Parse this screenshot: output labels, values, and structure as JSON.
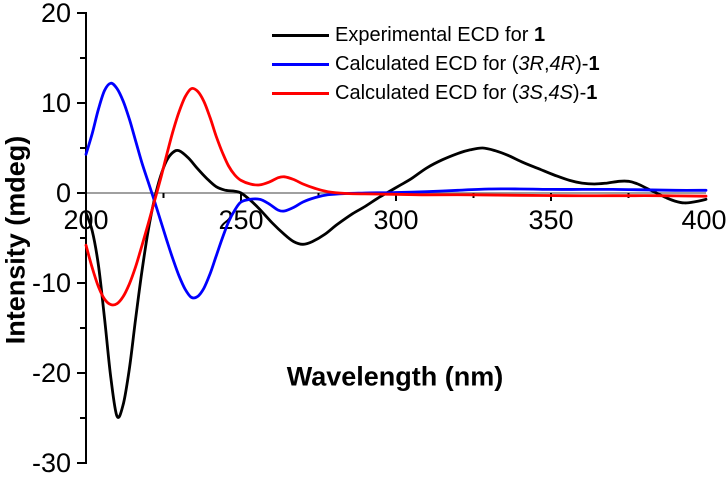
{
  "chart_data": {
    "type": "line",
    "title": "",
    "xlabel": "Wavelength (nm)",
    "ylabel": "Intensity (mdeg)",
    "xlim": [
      200,
      400
    ],
    "ylim": [
      -30,
      20
    ],
    "grid": false,
    "background": "#ffffff",
    "axis_color": "#000000",
    "zero_line_color": "#808080",
    "x_axis": {
      "label_values": [
        200,
        250,
        300,
        350,
        400
      ],
      "tick_marks_major": [
        250,
        300,
        350
      ],
      "tick_marks_minor": [
        225,
        275,
        325,
        375
      ]
    },
    "y_axis": {
      "label_values": [
        20,
        10,
        0,
        -10,
        -20,
        -30
      ],
      "tick_marks_major": [
        20,
        10,
        0,
        -10,
        -20,
        -30
      ],
      "tick_marks_minor": [
        15,
        5,
        -5,
        -15,
        -25
      ]
    },
    "legend_position": "top-center-inside",
    "series": [
      {
        "id": "experimental",
        "name": "Experimental ECD for 1",
        "color": "#000000",
        "points": [
          [
            200,
            -2.2
          ],
          [
            202,
            -4.2
          ],
          [
            204,
            -8
          ],
          [
            206,
            -14
          ],
          [
            208,
            -20.5
          ],
          [
            210,
            -24.8
          ],
          [
            212,
            -23.5
          ],
          [
            214,
            -19.5
          ],
          [
            216,
            -14
          ],
          [
            218,
            -8.8
          ],
          [
            220,
            -4.3
          ],
          [
            222,
            -0.8
          ],
          [
            224,
            1.8
          ],
          [
            226,
            3.6
          ],
          [
            228,
            4.5
          ],
          [
            230,
            4.7
          ],
          [
            233,
            3.9
          ],
          [
            236,
            2.7
          ],
          [
            239,
            1.6
          ],
          [
            242,
            0.7
          ],
          [
            245,
            0.3
          ],
          [
            248,
            0.2
          ],
          [
            250,
            0
          ],
          [
            253,
            -0.8
          ],
          [
            256,
            -1.8
          ],
          [
            260,
            -3.3
          ],
          [
            264,
            -4.6
          ],
          [
            267,
            -5.4
          ],
          [
            270,
            -5.7
          ],
          [
            273,
            -5.4
          ],
          [
            277,
            -4.6
          ],
          [
            281,
            -3.5
          ],
          [
            286,
            -2.3
          ],
          [
            290,
            -1.5
          ],
          [
            294,
            -0.6
          ],
          [
            297,
            0
          ],
          [
            301,
            0.8
          ],
          [
            305,
            1.6
          ],
          [
            310,
            2.8
          ],
          [
            315,
            3.7
          ],
          [
            320,
            4.4
          ],
          [
            324,
            4.8
          ],
          [
            328,
            5
          ],
          [
            332,
            4.7
          ],
          [
            336,
            4.2
          ],
          [
            341,
            3.4
          ],
          [
            346,
            2.7
          ],
          [
            351,
            2
          ],
          [
            356,
            1.4
          ],
          [
            360,
            1.1
          ],
          [
            364,
            1
          ],
          [
            368,
            1.1
          ],
          [
            372,
            1.3
          ],
          [
            375,
            1.3
          ],
          [
            378,
            1
          ],
          [
            381,
            0.5
          ],
          [
            384,
            0
          ],
          [
            387,
            -0.5
          ],
          [
            390,
            -0.9
          ],
          [
            393,
            -1.1
          ],
          [
            396,
            -1
          ],
          [
            400,
            -0.7
          ]
        ]
      },
      {
        "id": "calc-3r4r",
        "name": "Calculated ECD for (3R,4R)-1",
        "color": "#0000ff",
        "points": [
          [
            200,
            4.3
          ],
          [
            202,
            6.6
          ],
          [
            204,
            9.3
          ],
          [
            206,
            11.4
          ],
          [
            208,
            12.2
          ],
          [
            210,
            11.6
          ],
          [
            212,
            10.2
          ],
          [
            214,
            8.2
          ],
          [
            216,
            5.8
          ],
          [
            218,
            3.4
          ],
          [
            220,
            1.3
          ],
          [
            222,
            -0.8
          ],
          [
            224,
            -3
          ],
          [
            226,
            -5.2
          ],
          [
            228,
            -7.3
          ],
          [
            230,
            -9.2
          ],
          [
            232,
            -10.7
          ],
          [
            234,
            -11.6
          ],
          [
            236,
            -11.5
          ],
          [
            238,
            -10.6
          ],
          [
            240,
            -9
          ],
          [
            242,
            -7
          ],
          [
            244,
            -5
          ],
          [
            246,
            -3.2
          ],
          [
            248,
            -1.9
          ],
          [
            250,
            -1
          ],
          [
            253,
            -0.7
          ],
          [
            256,
            -0.7
          ],
          [
            259,
            -1.2
          ],
          [
            262,
            -1.9
          ],
          [
            264,
            -2
          ],
          [
            267,
            -1.6
          ],
          [
            270,
            -1
          ],
          [
            274,
            -0.5
          ],
          [
            278,
            -0.2
          ],
          [
            284,
            -0.05
          ],
          [
            290,
            0
          ],
          [
            300,
            0.05
          ],
          [
            310,
            0.15
          ],
          [
            320,
            0.3
          ],
          [
            330,
            0.45
          ],
          [
            340,
            0.45
          ],
          [
            350,
            0.4
          ],
          [
            360,
            0.4
          ],
          [
            370,
            0.4
          ],
          [
            380,
            0.35
          ],
          [
            390,
            0.3
          ],
          [
            400,
            0.3
          ]
        ]
      },
      {
        "id": "calc-3s4s",
        "name": "Calculated ECD for (3S,4S)-1",
        "color": "#ff0000",
        "points": [
          [
            200,
            -5.8
          ],
          [
            202,
            -8.3
          ],
          [
            204,
            -10.4
          ],
          [
            206,
            -11.8
          ],
          [
            208,
            -12.4
          ],
          [
            210,
            -12.3
          ],
          [
            212,
            -11.5
          ],
          [
            214,
            -10.1
          ],
          [
            216,
            -8.2
          ],
          [
            218,
            -5.9
          ],
          [
            220,
            -3.5
          ],
          [
            222,
            -1
          ],
          [
            224,
            1.5
          ],
          [
            226,
            4.2
          ],
          [
            228,
            6.8
          ],
          [
            230,
            9
          ],
          [
            232,
            10.7
          ],
          [
            234,
            11.6
          ],
          [
            236,
            11.3
          ],
          [
            238,
            10.2
          ],
          [
            240,
            8.4
          ],
          [
            242,
            6.3
          ],
          [
            244,
            4.5
          ],
          [
            246,
            3
          ],
          [
            248,
            2
          ],
          [
            250,
            1.4
          ],
          [
            253,
            1
          ],
          [
            256,
            0.9
          ],
          [
            259,
            1.2
          ],
          [
            262,
            1.7
          ],
          [
            264,
            1.8
          ],
          [
            267,
            1.5
          ],
          [
            270,
            1
          ],
          [
            274,
            0.5
          ],
          [
            278,
            0.15
          ],
          [
            284,
            -0.05
          ],
          [
            290,
            -0.1
          ],
          [
            300,
            -0.15
          ],
          [
            310,
            -0.2
          ],
          [
            325,
            -0.2
          ],
          [
            340,
            -0.25
          ],
          [
            355,
            -0.3
          ],
          [
            370,
            -0.3
          ],
          [
            385,
            -0.3
          ],
          [
            400,
            -0.35
          ]
        ]
      }
    ],
    "legend": {
      "entries": [
        {
          "series_id": "experimental",
          "color": "#000000",
          "rich": [
            {
              "t": "Experimental ECD for "
            },
            {
              "t": "1",
              "b": true
            }
          ]
        },
        {
          "series_id": "calc-3r4r",
          "color": "#0000ff",
          "rich": [
            {
              "t": "Calculated ECD for ("
            },
            {
              "t": "3R",
              "i": true
            },
            {
              "t": ","
            },
            {
              "t": "4R",
              "i": true
            },
            {
              "t": ")-"
            },
            {
              "t": "1",
              "b": true
            }
          ]
        },
        {
          "series_id": "calc-3s4s",
          "color": "#ff0000",
          "rich": [
            {
              "t": "Calculated ECD for ("
            },
            {
              "t": "3S",
              "i": true
            },
            {
              "t": ","
            },
            {
              "t": "4S",
              "i": true
            },
            {
              "t": ")-"
            },
            {
              "t": "1",
              "b": true
            }
          ]
        }
      ]
    }
  }
}
